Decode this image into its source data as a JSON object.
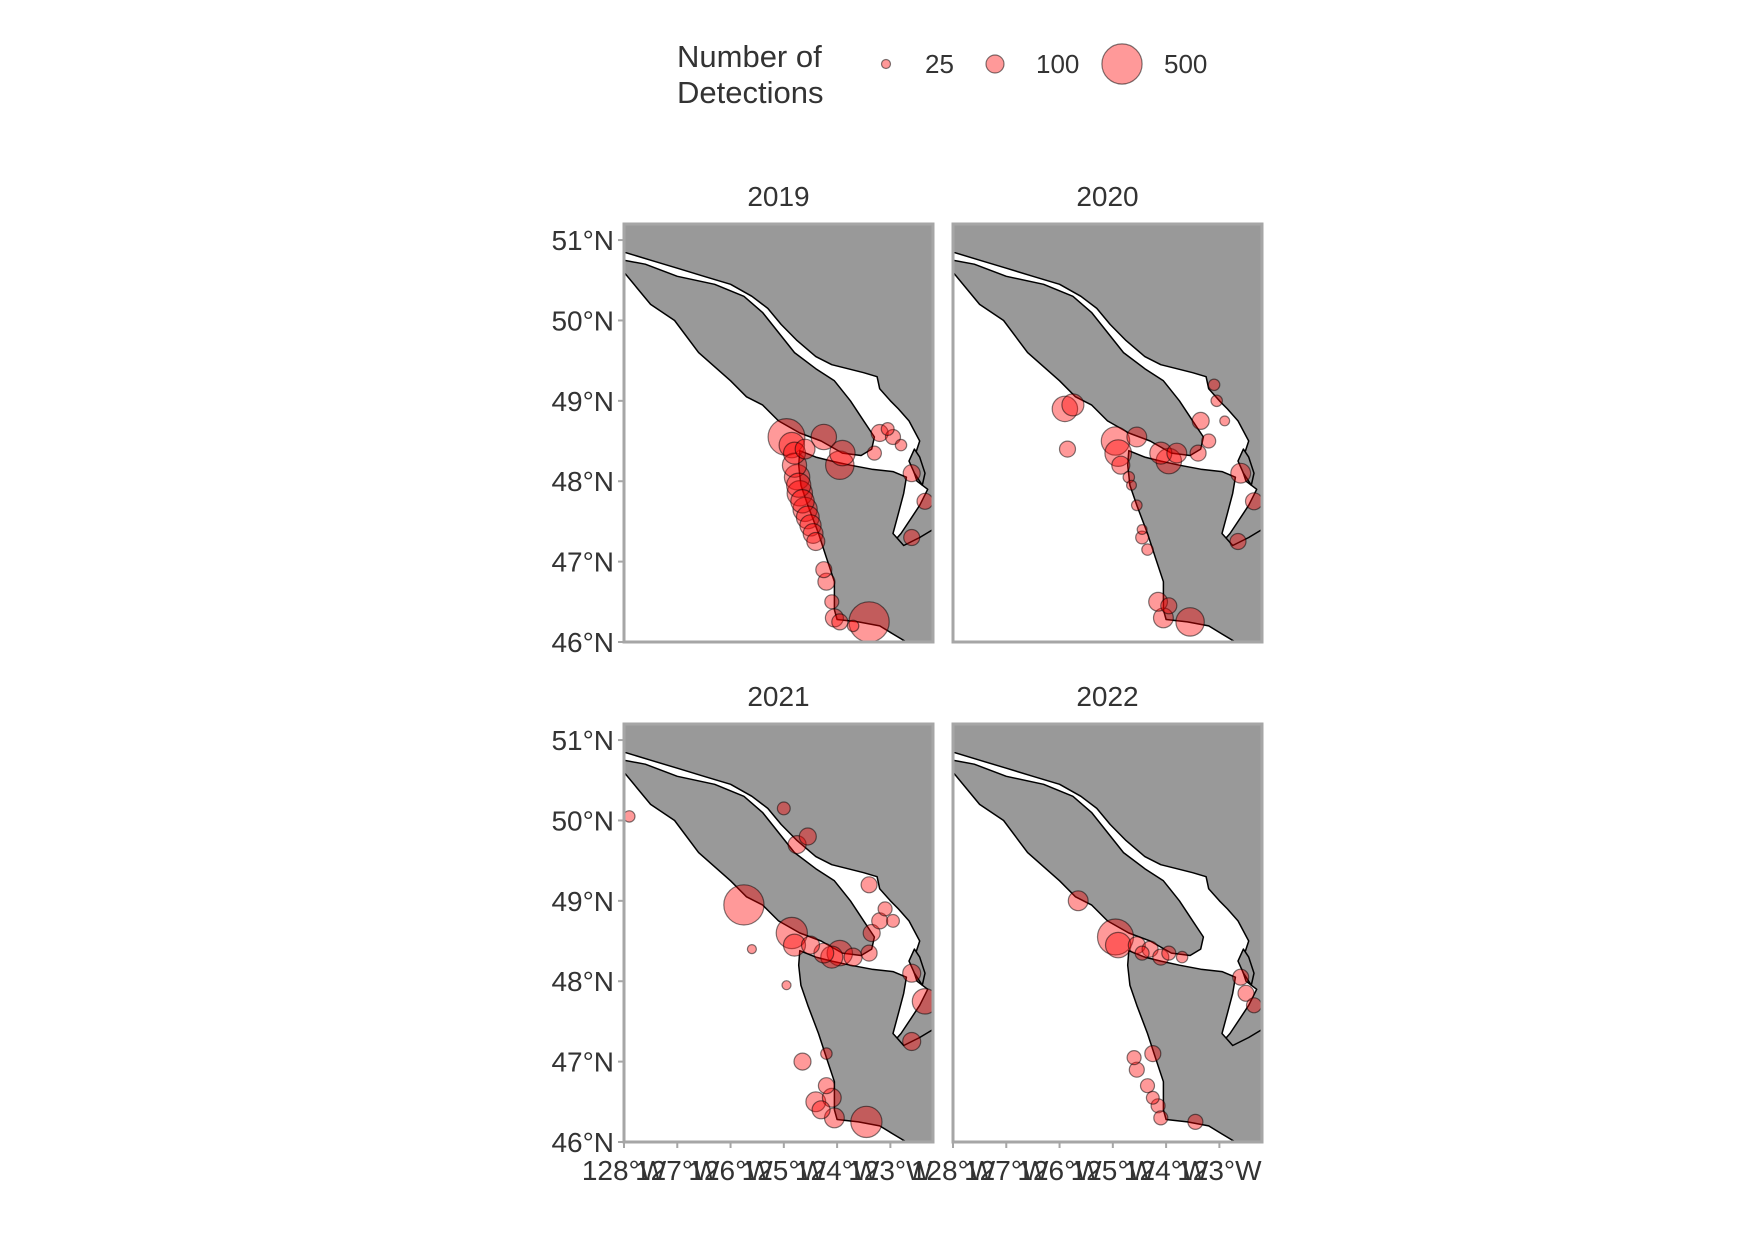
{
  "legend": {
    "title_lines": [
      "Number of",
      "Detections"
    ],
    "entries": [
      {
        "label": "25",
        "value": 25
      },
      {
        "label": "100",
        "value": 100
      },
      {
        "label": "500",
        "value": 500
      }
    ]
  },
  "colors": {
    "land": "#999999",
    "water": "#ffffff",
    "coast": "#000000",
    "point_fill": "#ff0000",
    "point_stroke": "#000000",
    "panel_border": "#a6a6a6",
    "text": "#333333"
  },
  "chart_data": {
    "type": "scatter",
    "subtype": "bubble-map facets",
    "size_variable": "Number of Detections",
    "xlim": [
      -128,
      -122.2
    ],
    "ylim": [
      46,
      51.2
    ],
    "x_ticks": [
      {
        "value": -128,
        "label": "128°W"
      },
      {
        "value": -127,
        "label": "127°W"
      },
      {
        "value": -126,
        "label": "126°W"
      },
      {
        "value": -125,
        "label": "125°W"
      },
      {
        "value": -124,
        "label": "124°W"
      },
      {
        "value": -123,
        "label": "123°W"
      }
    ],
    "y_ticks": [
      {
        "value": 46,
        "label": "46°N"
      },
      {
        "value": 47,
        "label": "47°N"
      },
      {
        "value": 48,
        "label": "48°N"
      },
      {
        "value": 49,
        "label": "49°N"
      },
      {
        "value": 50,
        "label": "50°N"
      },
      {
        "value": 51,
        "label": "51°N"
      }
    ],
    "panels": [
      {
        "title": "2019",
        "points": [
          {
            "lon": -124.95,
            "lat": 48.55,
            "n": 420
          },
          {
            "lon": -124.85,
            "lat": 48.45,
            "n": 200
          },
          {
            "lon": -124.8,
            "lat": 48.35,
            "n": 150
          },
          {
            "lon": -124.8,
            "lat": 48.2,
            "n": 180
          },
          {
            "lon": -124.75,
            "lat": 48.05,
            "n": 200
          },
          {
            "lon": -124.72,
            "lat": 47.95,
            "n": 180
          },
          {
            "lon": -124.7,
            "lat": 47.85,
            "n": 200
          },
          {
            "lon": -124.65,
            "lat": 47.75,
            "n": 170
          },
          {
            "lon": -124.6,
            "lat": 47.65,
            "n": 180
          },
          {
            "lon": -124.55,
            "lat": 47.55,
            "n": 160
          },
          {
            "lon": -124.5,
            "lat": 47.45,
            "n": 140
          },
          {
            "lon": -124.45,
            "lat": 47.35,
            "n": 120
          },
          {
            "lon": -124.4,
            "lat": 47.25,
            "n": 100
          },
          {
            "lon": -124.25,
            "lat": 48.55,
            "n": 200
          },
          {
            "lon": -124.6,
            "lat": 48.4,
            "n": 120
          },
          {
            "lon": -123.95,
            "lat": 48.2,
            "n": 250
          },
          {
            "lon": -123.9,
            "lat": 48.35,
            "n": 200
          },
          {
            "lon": -123.3,
            "lat": 48.35,
            "n": 60
          },
          {
            "lon": -123.2,
            "lat": 48.6,
            "n": 90
          },
          {
            "lon": -123.05,
            "lat": 48.65,
            "n": 50
          },
          {
            "lon": -122.95,
            "lat": 48.55,
            "n": 70
          },
          {
            "lon": -122.8,
            "lat": 48.45,
            "n": 40
          },
          {
            "lon": -122.6,
            "lat": 48.1,
            "n": 90
          },
          {
            "lon": -122.35,
            "lat": 47.75,
            "n": 80
          },
          {
            "lon": -122.6,
            "lat": 47.3,
            "n": 80
          },
          {
            "lon": -124.25,
            "lat": 46.9,
            "n": 80
          },
          {
            "lon": -124.2,
            "lat": 46.75,
            "n": 90
          },
          {
            "lon": -124.1,
            "lat": 46.5,
            "n": 60
          },
          {
            "lon": -124.05,
            "lat": 46.3,
            "n": 100
          },
          {
            "lon": -123.95,
            "lat": 46.25,
            "n": 80
          },
          {
            "lon": -123.4,
            "lat": 46.25,
            "n": 500
          },
          {
            "lon": -123.7,
            "lat": 46.2,
            "n": 40
          }
        ]
      },
      {
        "title": "2020",
        "points": [
          {
            "lon": -125.9,
            "lat": 48.9,
            "n": 200
          },
          {
            "lon": -125.75,
            "lat": 48.95,
            "n": 150
          },
          {
            "lon": -125.85,
            "lat": 48.4,
            "n": 80
          },
          {
            "lon": -124.95,
            "lat": 48.5,
            "n": 250
          },
          {
            "lon": -124.9,
            "lat": 48.35,
            "n": 220
          },
          {
            "lon": -124.85,
            "lat": 48.2,
            "n": 100
          },
          {
            "lon": -124.55,
            "lat": 48.55,
            "n": 120
          },
          {
            "lon": -124.1,
            "lat": 48.35,
            "n": 150
          },
          {
            "lon": -123.95,
            "lat": 48.25,
            "n": 200
          },
          {
            "lon": -123.8,
            "lat": 48.35,
            "n": 120
          },
          {
            "lon": -123.4,
            "lat": 48.35,
            "n": 80
          },
          {
            "lon": -123.2,
            "lat": 48.5,
            "n": 60
          },
          {
            "lon": -123.35,
            "lat": 48.75,
            "n": 90
          },
          {
            "lon": -123.1,
            "lat": 49.2,
            "n": 40
          },
          {
            "lon": -123.05,
            "lat": 49.0,
            "n": 40
          },
          {
            "lon": -122.9,
            "lat": 48.75,
            "n": 30
          },
          {
            "lon": -122.6,
            "lat": 48.1,
            "n": 120
          },
          {
            "lon": -122.35,
            "lat": 47.75,
            "n": 90
          },
          {
            "lon": -122.65,
            "lat": 47.25,
            "n": 80
          },
          {
            "lon": -124.7,
            "lat": 48.05,
            "n": 40
          },
          {
            "lon": -124.65,
            "lat": 47.95,
            "n": 30
          },
          {
            "lon": -124.55,
            "lat": 47.7,
            "n": 35
          },
          {
            "lon": -124.45,
            "lat": 47.3,
            "n": 50
          },
          {
            "lon": -124.35,
            "lat": 47.15,
            "n": 40
          },
          {
            "lon": -124.45,
            "lat": 47.4,
            "n": 30
          },
          {
            "lon": -124.15,
            "lat": 46.5,
            "n": 110
          },
          {
            "lon": -124.05,
            "lat": 46.3,
            "n": 120
          },
          {
            "lon": -123.95,
            "lat": 46.45,
            "n": 80
          },
          {
            "lon": -123.55,
            "lat": 46.25,
            "n": 250
          }
        ]
      },
      {
        "title": "2021",
        "points": [
          {
            "lon": -127.9,
            "lat": 50.05,
            "n": 40
          },
          {
            "lon": -125.75,
            "lat": 48.95,
            "n": 500
          },
          {
            "lon": -125.6,
            "lat": 48.4,
            "n": 25
          },
          {
            "lon": -124.85,
            "lat": 48.6,
            "n": 300
          },
          {
            "lon": -124.8,
            "lat": 48.45,
            "n": 150
          },
          {
            "lon": -124.5,
            "lat": 48.45,
            "n": 100
          },
          {
            "lon": -124.25,
            "lat": 48.35,
            "n": 120
          },
          {
            "lon": -124.1,
            "lat": 48.3,
            "n": 150
          },
          {
            "lon": -123.95,
            "lat": 48.35,
            "n": 200
          },
          {
            "lon": -123.7,
            "lat": 48.3,
            "n": 100
          },
          {
            "lon": -123.4,
            "lat": 48.35,
            "n": 80
          },
          {
            "lon": -123.35,
            "lat": 48.6,
            "n": 90
          },
          {
            "lon": -123.2,
            "lat": 48.75,
            "n": 80
          },
          {
            "lon": -123.4,
            "lat": 49.2,
            "n": 80
          },
          {
            "lon": -123.1,
            "lat": 48.9,
            "n": 60
          },
          {
            "lon": -122.95,
            "lat": 48.75,
            "n": 50
          },
          {
            "lon": -122.6,
            "lat": 48.1,
            "n": 100
          },
          {
            "lon": -122.35,
            "lat": 47.75,
            "n": 200
          },
          {
            "lon": -122.6,
            "lat": 47.25,
            "n": 100
          },
          {
            "lon": -125.0,
            "lat": 50.15,
            "n": 50
          },
          {
            "lon": -124.75,
            "lat": 49.7,
            "n": 100
          },
          {
            "lon": -124.55,
            "lat": 49.8,
            "n": 90
          },
          {
            "lon": -124.95,
            "lat": 47.95,
            "n": 25
          },
          {
            "lon": -124.65,
            "lat": 47.0,
            "n": 90
          },
          {
            "lon": -124.2,
            "lat": 47.1,
            "n": 40
          },
          {
            "lon": -124.4,
            "lat": 46.5,
            "n": 120
          },
          {
            "lon": -124.3,
            "lat": 46.4,
            "n": 100
          },
          {
            "lon": -124.1,
            "lat": 46.55,
            "n": 110
          },
          {
            "lon": -124.05,
            "lat": 46.3,
            "n": 120
          },
          {
            "lon": -124.2,
            "lat": 46.7,
            "n": 80
          },
          {
            "lon": -123.45,
            "lat": 46.25,
            "n": 300
          }
        ]
      },
      {
        "title": "2022",
        "points": [
          {
            "lon": -125.65,
            "lat": 49.0,
            "n": 120
          },
          {
            "lon": -124.95,
            "lat": 48.55,
            "n": 400
          },
          {
            "lon": -124.9,
            "lat": 48.45,
            "n": 200
          },
          {
            "lon": -124.55,
            "lat": 48.45,
            "n": 90
          },
          {
            "lon": -124.3,
            "lat": 48.4,
            "n": 80
          },
          {
            "lon": -124.1,
            "lat": 48.3,
            "n": 80
          },
          {
            "lon": -123.95,
            "lat": 48.35,
            "n": 60
          },
          {
            "lon": -123.7,
            "lat": 48.3,
            "n": 40
          },
          {
            "lon": -124.45,
            "lat": 48.35,
            "n": 60
          },
          {
            "lon": -122.6,
            "lat": 48.05,
            "n": 80
          },
          {
            "lon": -122.5,
            "lat": 47.85,
            "n": 80
          },
          {
            "lon": -122.35,
            "lat": 47.7,
            "n": 70
          },
          {
            "lon": -124.6,
            "lat": 47.05,
            "n": 60
          },
          {
            "lon": -124.55,
            "lat": 46.9,
            "n": 70
          },
          {
            "lon": -124.25,
            "lat": 47.1,
            "n": 80
          },
          {
            "lon": -124.35,
            "lat": 46.7,
            "n": 60
          },
          {
            "lon": -124.25,
            "lat": 46.55,
            "n": 50
          },
          {
            "lon": -124.15,
            "lat": 46.45,
            "n": 60
          },
          {
            "lon": -124.1,
            "lat": 46.3,
            "n": 60
          },
          {
            "lon": -123.45,
            "lat": 46.25,
            "n": 70
          }
        ]
      }
    ]
  }
}
